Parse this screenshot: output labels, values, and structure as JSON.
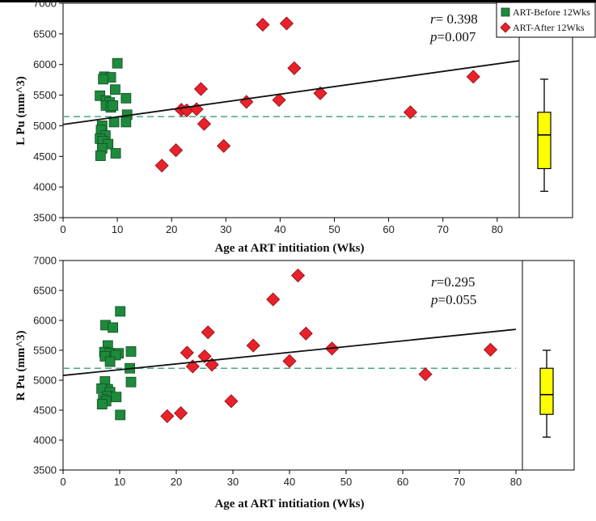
{
  "legend": {
    "items": [
      {
        "label": "ART-Before 12Wks",
        "color": "#1e8a3c",
        "marker": "square"
      },
      {
        "label": "ART-After 12Wks",
        "color": "#e8212b",
        "marker": "diamond"
      }
    ]
  },
  "colors": {
    "before": "#1e8a3c",
    "after": "#e8212b",
    "fit_line": "#111111",
    "mean_line": "#4aa882",
    "box": "#ffff00"
  },
  "chart_data": [
    {
      "type": "scatter",
      "title": "",
      "ylabel": "L Pu (mm^3)",
      "xlabel": "Age at ART intitiation (Wks)",
      "xlim": [
        0,
        84
      ],
      "ylim": [
        3500,
        7000
      ],
      "xticks": [
        0,
        10,
        20,
        30,
        40,
        50,
        60,
        70,
        80
      ],
      "yticks": [
        3500,
        4000,
        4500,
        5000,
        5500,
        6000,
        6500,
        7000
      ],
      "stats": {
        "r_label": "r",
        "r_text": "= 0.398",
        "p_label": "p",
        "p_text": "=0.007"
      },
      "fit_line": {
        "x": [
          0,
          84
        ],
        "y": [
          5020,
          6060
        ]
      },
      "reference_line": {
        "y": 5150,
        "style": "dashed"
      },
      "series": [
        {
          "name": "ART-Before 12Wks",
          "points": [
            [
              7.6,
              5800
            ],
            [
              8.8,
              5790
            ],
            [
              10,
              6020
            ],
            [
              7.4,
              5760
            ],
            [
              9.6,
              5590
            ],
            [
              11.6,
              5450
            ],
            [
              6.8,
              5490
            ],
            [
              7.9,
              5410
            ],
            [
              8.6,
              5380
            ],
            [
              7.9,
              5330
            ],
            [
              8.8,
              5300
            ],
            [
              9.2,
              5330
            ],
            [
              11.8,
              5180
            ],
            [
              11.6,
              5060
            ],
            [
              9.4,
              5060
            ],
            [
              7.2,
              5000
            ],
            [
              7.0,
              4930
            ],
            [
              7.8,
              4840
            ],
            [
              6.8,
              4790
            ],
            [
              7.3,
              4750
            ],
            [
              8.3,
              4700
            ],
            [
              7.2,
              4630
            ],
            [
              9.7,
              4550
            ],
            [
              6.9,
              4510
            ]
          ]
        },
        {
          "name": "ART-After 12Wks",
          "points": [
            [
              18.2,
              4350
            ],
            [
              20.8,
              4600
            ],
            [
              21.8,
              5260
            ],
            [
              22.8,
              5250
            ],
            [
              24.6,
              5270
            ],
            [
              25.4,
              5600
            ],
            [
              26,
              5030
            ],
            [
              29.6,
              4670
            ],
            [
              33.8,
              5390
            ],
            [
              36.8,
              6650
            ],
            [
              39.8,
              5420
            ],
            [
              41.2,
              6670
            ],
            [
              42.6,
              5940
            ],
            [
              47.4,
              5530
            ],
            [
              64,
              5220
            ],
            [
              75.6,
              5800
            ]
          ]
        }
      ],
      "boxplot": {
        "min": 3930,
        "q1": 4300,
        "median": 4850,
        "q3": 5220,
        "max": 5760
      }
    },
    {
      "type": "scatter",
      "title": "",
      "ylabel": "R Pu (mm^3)",
      "xlabel": "Age at ART intitiation (Wks)",
      "xlim": [
        0,
        80
      ],
      "ylim": [
        3500,
        7000
      ],
      "xticks": [
        0,
        10,
        20,
        30,
        40,
        50,
        60,
        70,
        80
      ],
      "yticks": [
        3500,
        4000,
        4500,
        5000,
        5500,
        6000,
        6500,
        7000
      ],
      "stats": {
        "r_label": "r",
        "r_text": "=0.295",
        "p_label": "p",
        "p_text": "=0.055"
      },
      "fit_line": {
        "x": [
          0,
          80
        ],
        "y": [
          5080,
          5850
        ]
      },
      "reference_line": {
        "y": 5200,
        "style": "dashed"
      },
      "series": [
        {
          "name": "ART-Before 12Wks",
          "points": [
            [
              10.1,
              6150
            ],
            [
              7.5,
              5920
            ],
            [
              8.8,
              5880
            ],
            [
              7.9,
              5580
            ],
            [
              7.3,
              5470
            ],
            [
              8.3,
              5450
            ],
            [
              9.8,
              5450
            ],
            [
              9.3,
              5420
            ],
            [
              12,
              5480
            ],
            [
              7.4,
              5400
            ],
            [
              8.3,
              5310
            ],
            [
              11.8,
              5200
            ],
            [
              12,
              4970
            ],
            [
              7.4,
              4980
            ],
            [
              7.9,
              4850
            ],
            [
              6.8,
              4860
            ],
            [
              8.3,
              4800
            ],
            [
              7.8,
              4730
            ],
            [
              9.4,
              4720
            ],
            [
              7.1,
              4680
            ],
            [
              7.6,
              4650
            ],
            [
              6.9,
              4600
            ],
            [
              10.1,
              4420
            ]
          ]
        },
        {
          "name": "ART-After 12Wks",
          "points": [
            [
              18.4,
              4400
            ],
            [
              20.8,
              4450
            ],
            [
              21.9,
              5460
            ],
            [
              22.9,
              5230
            ],
            [
              25,
              5400
            ],
            [
              25.6,
              5800
            ],
            [
              26.3,
              5260
            ],
            [
              29.7,
              4650
            ],
            [
              33.6,
              5580
            ],
            [
              37.1,
              6350
            ],
            [
              40,
              5320
            ],
            [
              41.5,
              6750
            ],
            [
              42.9,
              5780
            ],
            [
              47.5,
              5530
            ],
            [
              64,
              5100
            ],
            [
              75.5,
              5510
            ]
          ]
        }
      ],
      "boxplot": {
        "min": 4050,
        "q1": 4430,
        "median": 4760,
        "q3": 5200,
        "max": 5500
      }
    }
  ]
}
